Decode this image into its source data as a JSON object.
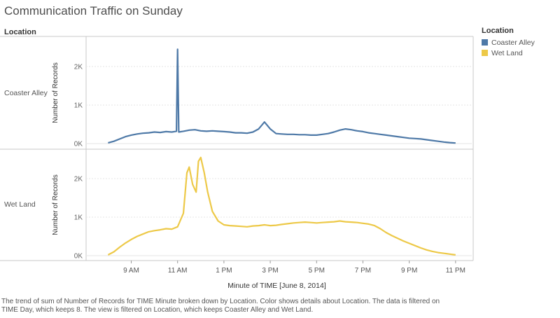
{
  "chart_data": {
    "type": "line",
    "title": "Communication Traffic on Sunday",
    "row_header": "Location",
    "xlabel": "Minute of TIME [June 8, 2014]",
    "ylabel": "Number of Records",
    "x_ticks": [
      "9 AM",
      "11 AM",
      "1 PM",
      "3 PM",
      "5 PM",
      "7 PM",
      "9 PM",
      "11 PM"
    ],
    "x_tick_hours": [
      9,
      11,
      13,
      15,
      17,
      19,
      21,
      23
    ],
    "xlim_hours": [
      7.05,
      23.7
    ],
    "y_ticks": [
      "0K",
      "1K",
      "2K"
    ],
    "y_tick_values": [
      0,
      1000,
      2000
    ],
    "ylim": [
      0,
      2700
    ],
    "legend": {
      "title": "Location",
      "position": "right",
      "items": [
        {
          "label": "Coaster Alley",
          "color": "#4e79a7"
        },
        {
          "label": "Wet Land",
          "color": "#edc948"
        }
      ]
    },
    "series": [
      {
        "name": "Coaster Alley",
        "color": "#4e79a7",
        "points": [
          [
            8.0,
            20
          ],
          [
            8.25,
            60
          ],
          [
            8.5,
            120
          ],
          [
            8.75,
            180
          ],
          [
            9.0,
            220
          ],
          [
            9.25,
            250
          ],
          [
            9.5,
            270
          ],
          [
            9.75,
            280
          ],
          [
            10.0,
            300
          ],
          [
            10.25,
            290
          ],
          [
            10.5,
            310
          ],
          [
            10.75,
            300
          ],
          [
            10.95,
            320
          ],
          [
            11.0,
            2450
          ],
          [
            11.05,
            300
          ],
          [
            11.25,
            320
          ],
          [
            11.5,
            350
          ],
          [
            11.75,
            360
          ],
          [
            12.0,
            330
          ],
          [
            12.25,
            320
          ],
          [
            12.5,
            330
          ],
          [
            12.75,
            320
          ],
          [
            13.0,
            310
          ],
          [
            13.25,
            300
          ],
          [
            13.5,
            280
          ],
          [
            13.75,
            280
          ],
          [
            14.0,
            270
          ],
          [
            14.25,
            300
          ],
          [
            14.5,
            380
          ],
          [
            14.75,
            560
          ],
          [
            15.0,
            380
          ],
          [
            15.25,
            260
          ],
          [
            15.5,
            250
          ],
          [
            15.75,
            240
          ],
          [
            16.0,
            240
          ],
          [
            16.25,
            230
          ],
          [
            16.5,
            230
          ],
          [
            16.75,
            220
          ],
          [
            17.0,
            220
          ],
          [
            17.25,
            240
          ],
          [
            17.5,
            260
          ],
          [
            17.75,
            300
          ],
          [
            18.0,
            350
          ],
          [
            18.25,
            380
          ],
          [
            18.5,
            360
          ],
          [
            18.75,
            330
          ],
          [
            19.0,
            310
          ],
          [
            19.25,
            280
          ],
          [
            19.5,
            260
          ],
          [
            19.75,
            240
          ],
          [
            20.0,
            220
          ],
          [
            20.25,
            200
          ],
          [
            20.5,
            180
          ],
          [
            20.75,
            160
          ],
          [
            21.0,
            140
          ],
          [
            21.25,
            130
          ],
          [
            21.5,
            120
          ],
          [
            21.75,
            100
          ],
          [
            22.0,
            80
          ],
          [
            22.25,
            60
          ],
          [
            22.5,
            40
          ],
          [
            22.75,
            25
          ],
          [
            23.0,
            15
          ]
        ]
      },
      {
        "name": "Wet Land",
        "color": "#edc948",
        "points": [
          [
            8.0,
            20
          ],
          [
            8.25,
            100
          ],
          [
            8.5,
            220
          ],
          [
            8.75,
            330
          ],
          [
            9.0,
            420
          ],
          [
            9.25,
            500
          ],
          [
            9.5,
            560
          ],
          [
            9.75,
            620
          ],
          [
            10.0,
            650
          ],
          [
            10.25,
            670
          ],
          [
            10.5,
            700
          ],
          [
            10.75,
            690
          ],
          [
            11.0,
            750
          ],
          [
            11.25,
            1100
          ],
          [
            11.4,
            2150
          ],
          [
            11.5,
            2300
          ],
          [
            11.65,
            1850
          ],
          [
            11.8,
            1650
          ],
          [
            11.9,
            2450
          ],
          [
            12.0,
            2550
          ],
          [
            12.15,
            2150
          ],
          [
            12.3,
            1650
          ],
          [
            12.5,
            1150
          ],
          [
            12.75,
            900
          ],
          [
            13.0,
            800
          ],
          [
            13.25,
            780
          ],
          [
            13.5,
            770
          ],
          [
            13.75,
            760
          ],
          [
            14.0,
            750
          ],
          [
            14.25,
            770
          ],
          [
            14.5,
            780
          ],
          [
            14.75,
            800
          ],
          [
            15.0,
            780
          ],
          [
            15.25,
            790
          ],
          [
            15.5,
            810
          ],
          [
            15.75,
            830
          ],
          [
            16.0,
            850
          ],
          [
            16.25,
            860
          ],
          [
            16.5,
            870
          ],
          [
            16.75,
            860
          ],
          [
            17.0,
            850
          ],
          [
            17.25,
            860
          ],
          [
            17.5,
            870
          ],
          [
            17.75,
            880
          ],
          [
            18.0,
            900
          ],
          [
            18.25,
            880
          ],
          [
            18.5,
            870
          ],
          [
            18.75,
            860
          ],
          [
            19.0,
            840
          ],
          [
            19.25,
            820
          ],
          [
            19.5,
            780
          ],
          [
            19.75,
            700
          ],
          [
            20.0,
            600
          ],
          [
            20.25,
            520
          ],
          [
            20.5,
            450
          ],
          [
            20.75,
            380
          ],
          [
            21.0,
            320
          ],
          [
            21.25,
            260
          ],
          [
            21.5,
            200
          ],
          [
            21.75,
            150
          ],
          [
            22.0,
            110
          ],
          [
            22.25,
            80
          ],
          [
            22.5,
            60
          ],
          [
            22.75,
            40
          ],
          [
            23.0,
            20
          ]
        ]
      }
    ]
  },
  "caption": "The trend of sum of Number of Records for TIME Minute broken down by Location.  Color shows details about Location. The data is filtered on TIME Day, which keeps 8. The view is filtered on Location, which keeps Coaster Alley and Wet Land."
}
